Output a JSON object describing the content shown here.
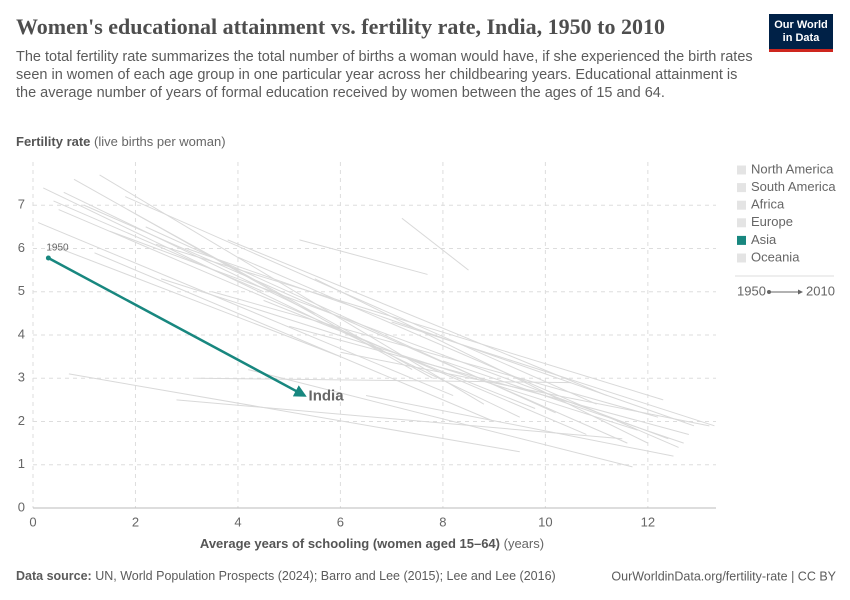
{
  "chart_data": {
    "type": "line",
    "title": "Women's educational attainment vs. fertility rate, India, 1950 to 2010",
    "subtitle": "The total fertility rate summarizes the total number of births a woman would have, if she experienced the birth rates seen in women of each age group in one particular year across her childbearing years. Educational attainment is the average number of years of formal education received by women between the ages of 15 and 64.",
    "logo": "Our World in Data",
    "y_label": "Fertility rate",
    "y_label_unit": "(live births per woman)",
    "x_label": "Average years of schooling (women aged 15–64)",
    "x_label_unit": "(years)",
    "xlim": [
      0,
      13.33
    ],
    "ylim": [
      0,
      8
    ],
    "xticks": [
      0,
      2,
      4,
      6,
      8,
      10,
      12
    ],
    "yticks": [
      0,
      1,
      2,
      3,
      4,
      5,
      6,
      7
    ],
    "grid": true,
    "legend": [
      {
        "name": "North America",
        "color": "#e4e4e4",
        "text_color": "#a1a1a1"
      },
      {
        "name": "South America",
        "color": "#e4e4e4",
        "text_color": "#a1a1a1"
      },
      {
        "name": "Africa",
        "color": "#e4e4e4",
        "text_color": "#a1a1a1"
      },
      {
        "name": "Europe",
        "color": "#e4e4e4",
        "text_color": "#a1a1a1"
      },
      {
        "name": "Asia",
        "color": "#18877f",
        "text_color": "#333333"
      },
      {
        "name": "Oceania",
        "color": "#e4e4e4",
        "text_color": "#a1a1a1"
      }
    ],
    "time_legend": [
      1950,
      2010
    ],
    "series": [
      {
        "name": "India",
        "color": "#18877f",
        "x": [
          0.3,
          5.3
        ],
        "values": [
          5.78,
          2.6
        ],
        "start_label": 1950
      }
    ],
    "background_color": "#d9d9d9",
    "background": [
      {
        "x": [
          0.2,
          9.5
        ],
        "values": [
          7.4,
          2.1
        ]
      },
      {
        "x": [
          0.5,
          10.8
        ],
        "values": [
          6.9,
          1.7
        ]
      },
      {
        "x": [
          1.0,
          11.6
        ],
        "values": [
          7.0,
          1.5
        ]
      },
      {
        "x": [
          0.1,
          8.2
        ],
        "values": [
          6.6,
          2.6
        ]
      },
      {
        "x": [
          1.5,
          12.4
        ],
        "values": [
          6.4,
          1.6
        ]
      },
      {
        "x": [
          0.8,
          7.4
        ],
        "values": [
          7.6,
          3.2
        ]
      },
      {
        "x": [
          2.2,
          10.2
        ],
        "values": [
          6.5,
          2.2
        ]
      },
      {
        "x": [
          3.0,
          12.9
        ],
        "values": [
          6.0,
          1.9
        ]
      },
      {
        "x": [
          0.3,
          6.0
        ],
        "values": [
          6.1,
          3.5
        ]
      },
      {
        "x": [
          1.8,
          11.0
        ],
        "values": [
          7.2,
          2.4
        ]
      },
      {
        "x": [
          4.0,
          12.6
        ],
        "values": [
          5.8,
          1.4
        ]
      },
      {
        "x": [
          2.5,
          11.8
        ],
        "values": [
          5.3,
          1.8
        ]
      },
      {
        "x": [
          3.5,
          12.2
        ],
        "values": [
          5.0,
          2.1
        ]
      },
      {
        "x": [
          5.0,
          12.8
        ],
        "values": [
          4.2,
          1.7
        ]
      },
      {
        "x": [
          6.0,
          13.2
        ],
        "values": [
          3.6,
          1.9
        ]
      },
      {
        "x": [
          2.8,
          11.5
        ],
        "values": [
          2.5,
          1.6
        ]
      },
      {
        "x": [
          3.2,
          10.5
        ],
        "values": [
          3.0,
          2.9
        ]
      },
      {
        "x": [
          4.5,
          9.8
        ],
        "values": [
          4.8,
          2.3
        ]
      },
      {
        "x": [
          0.6,
          5.5
        ],
        "values": [
          7.3,
          4.5
        ]
      },
      {
        "x": [
          1.2,
          9.0
        ],
        "values": [
          5.9,
          2.0
        ]
      },
      {
        "x": [
          2.0,
          7.8
        ],
        "values": [
          6.8,
          3.0
        ]
      },
      {
        "x": [
          3.8,
          11.2
        ],
        "values": [
          6.2,
          2.6
        ]
      },
      {
        "x": [
          5.5,
          12.0
        ],
        "values": [
          5.3,
          1.5
        ]
      },
      {
        "x": [
          7.0,
          13.3
        ],
        "values": [
          4.3,
          1.9
        ]
      },
      {
        "x": [
          1.3,
          8.8
        ],
        "values": [
          7.7,
          2.4
        ]
      },
      {
        "x": [
          0.4,
          4.5
        ],
        "values": [
          7.1,
          5.0
        ]
      },
      {
        "x": [
          6.5,
          12.5
        ],
        "values": [
          2.6,
          1.2
        ]
      },
      {
        "x": [
          8.0,
          12.7
        ],
        "values": [
          3.4,
          1.5
        ]
      },
      {
        "x": [
          0.7,
          9.5
        ],
        "values": [
          3.1,
          1.3
        ]
      },
      {
        "x": [
          4.2,
          11.7
        ],
        "values": [
          3.2,
          0.95
        ]
      },
      {
        "x": [
          2.4,
          12.3
        ],
        "values": [
          6.1,
          2.5
        ]
      },
      {
        "x": [
          7.2,
          8.5
        ],
        "values": [
          6.7,
          5.5
        ]
      },
      {
        "x": [
          5.2,
          7.7
        ],
        "values": [
          6.2,
          5.4
        ]
      }
    ],
    "source_label": "Data source:",
    "source": "UN, World Population Prospects (2024); Barro and Lee (2015); Lee and Lee (2016)",
    "url": "OurWorldinData.org/fertility-rate | CC BY"
  }
}
